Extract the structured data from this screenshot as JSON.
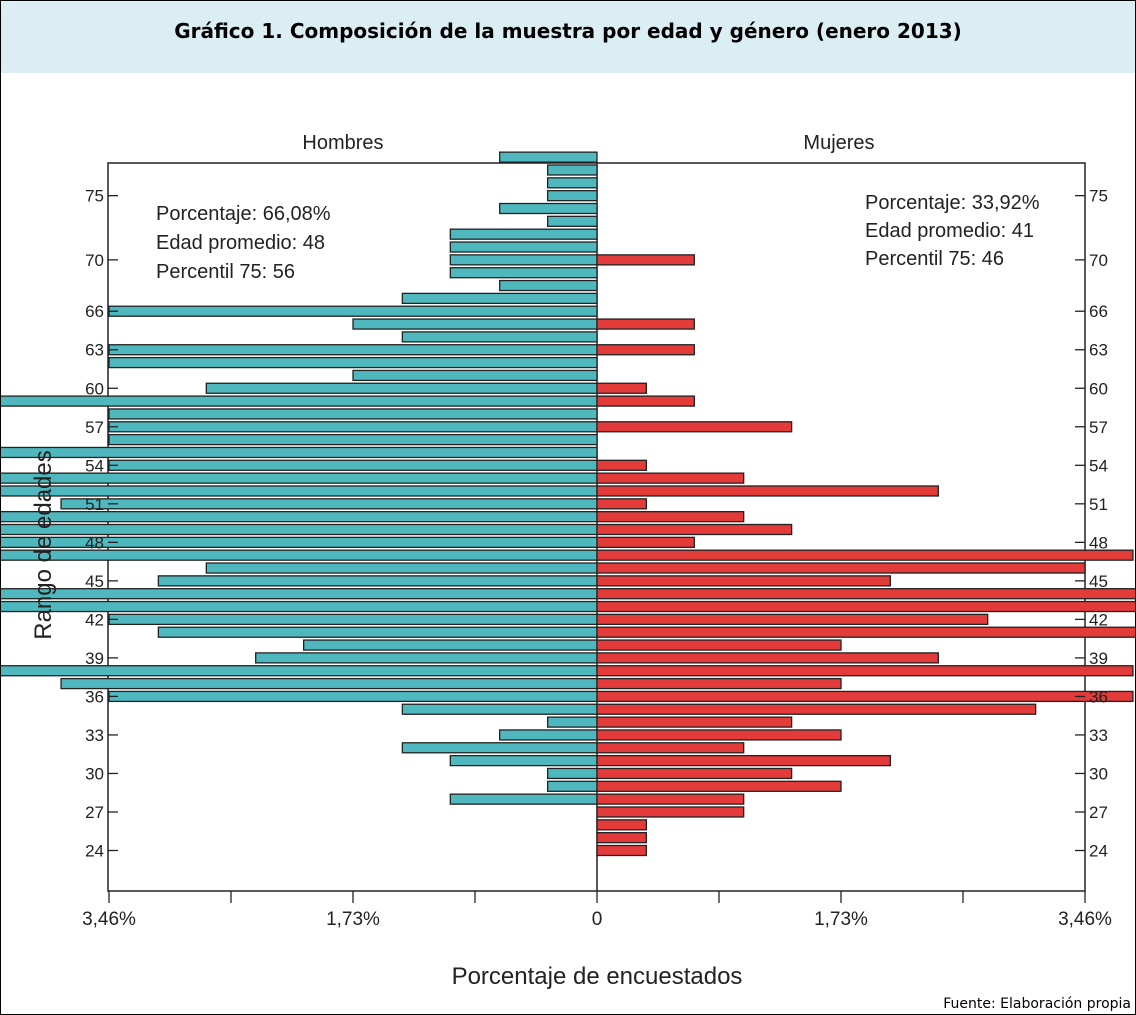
{
  "title": "Gráfico 1. Composición de la muestra por edad y género (enero 2013)",
  "source": "Fuente: Elaboración propia",
  "colors": {
    "men": "#4fb8bf",
    "women": "#e33a3a",
    "title_bg": "#dbeef3"
  },
  "chart_data": {
    "type": "bar",
    "orientation": "horizontal-population-pyramid",
    "xlabel": "Porcentaje de encuestados",
    "ylabel": "Rango de edades",
    "xlim": [
      -3.46,
      3.46
    ],
    "ylim": [
      21,
      80
    ],
    "x_tick_labels": [
      {
        "value": -3.46,
        "label": "3,46%"
      },
      {
        "value": -1.73,
        "label": "1,73%"
      },
      {
        "value": 0,
        "label": "0"
      },
      {
        "value": 1.73,
        "label": "1,73%"
      },
      {
        "value": 3.46,
        "label": "3,46%"
      }
    ],
    "x_minor_ticks": [
      -2.595,
      -0.865,
      0.865,
      2.595
    ],
    "y_ticks": [
      24,
      27,
      30,
      33,
      36,
      39,
      42,
      45,
      48,
      51,
      54,
      57,
      60,
      63,
      66,
      70,
      75
    ],
    "ages": [
      78,
      77,
      76,
      75,
      74,
      73,
      72,
      71,
      70,
      69,
      68,
      67,
      66,
      65,
      64,
      63,
      62,
      61,
      60,
      59,
      58,
      57,
      56,
      55,
      54,
      53,
      52,
      51,
      50,
      49,
      48,
      47,
      46,
      45,
      44,
      43,
      42,
      41,
      40,
      39,
      38,
      37,
      36,
      35,
      34,
      33,
      32,
      31,
      30,
      29,
      28,
      27,
      26,
      25,
      24
    ],
    "series": [
      {
        "name": "Hombres",
        "values": [
          0.69,
          0.35,
          0.35,
          0.35,
          0.69,
          0.35,
          1.04,
          1.04,
          1.04,
          1.04,
          0.69,
          1.38,
          3.46,
          1.73,
          1.38,
          3.46,
          3.46,
          1.73,
          2.77,
          5.53,
          3.46,
          3.46,
          3.46,
          5.19,
          3.46,
          4.84,
          6.57,
          3.8,
          4.5,
          6.57,
          4.84,
          4.84,
          2.77,
          3.11,
          5.19,
          5.19,
          3.46,
          3.11,
          2.08,
          2.42,
          4.84,
          3.8,
          3.46,
          1.38,
          0.35,
          0.69,
          1.38,
          1.04,
          0.35,
          0.35,
          1.04,
          0,
          0,
          0,
          0
        ]
      },
      {
        "name": "Mujeres",
        "values": [
          0,
          0,
          0,
          0,
          0,
          0,
          0,
          0,
          0.69,
          0,
          0,
          0,
          0,
          0.69,
          0,
          0.69,
          0,
          0,
          0.35,
          0.69,
          0,
          1.38,
          0,
          0,
          0.35,
          1.04,
          2.42,
          0.35,
          1.04,
          1.38,
          0.69,
          3.8,
          3.46,
          2.08,
          5.88,
          4.5,
          2.77,
          4.5,
          1.73,
          2.42,
          3.8,
          1.73,
          3.8,
          3.11,
          1.38,
          1.73,
          1.04,
          2.08,
          1.38,
          1.73,
          1.04,
          1.04,
          0.35,
          0.35,
          0.35
        ]
      }
    ],
    "annotations": {
      "men": [
        "Porcentaje: 66,08%",
        "Edad promedio: 48",
        "Percentil 75: 56"
      ],
      "women": [
        "Porcentaje: 33,92%",
        "Edad promedio: 41",
        "Percentil 75: 46"
      ]
    },
    "grid": false
  }
}
